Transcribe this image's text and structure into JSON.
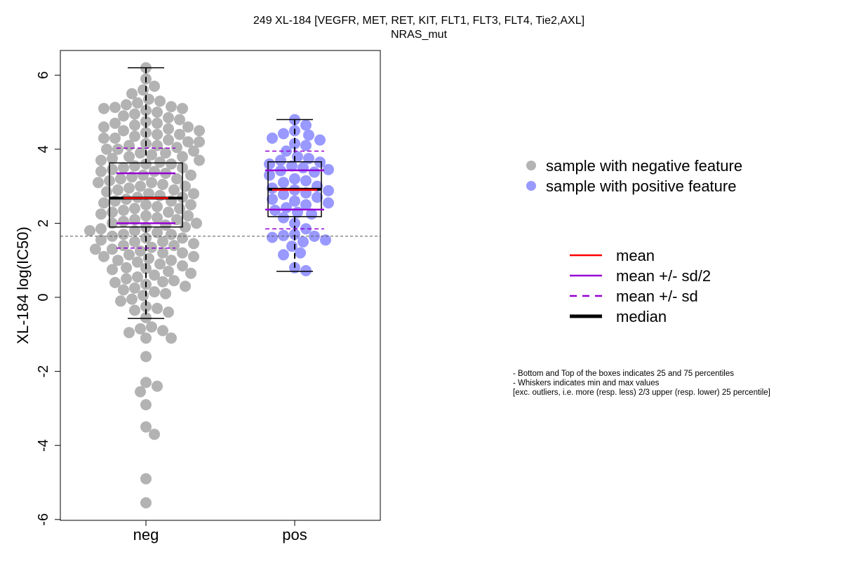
{
  "chart_data": {
    "type": "scatter",
    "title": "249 XL-184 [VEGFR, MET, RET, KIT, FLT1, FLT3, FLT4, Tie2,AXL]",
    "subtitle": "NRAS_mut",
    "ylabel": "XL-184 log(IC50)",
    "xlabel": "",
    "categories": [
      "neg",
      "pos"
    ],
    "yticks": [
      -6,
      -4,
      -2,
      0,
      2,
      4,
      6
    ],
    "ylim": [
      -6.2,
      6.6
    ],
    "reference_line": 1.65,
    "colors": {
      "neg": "#b3b3b3",
      "pos": "#9999ff",
      "mean": "#ff0000",
      "sd": "#9400d3",
      "median": "#000000"
    },
    "groups": [
      {
        "name": "neg",
        "box": {
          "q1": 1.9,
          "median": 2.68,
          "q3": 3.63,
          "whisker_low": -0.57,
          "whisker_high": 6.2
        },
        "mean": 2.68,
        "half_sd_low": 2.0,
        "half_sd_high": 3.35,
        "sd_low": 1.33,
        "sd_high": 4.03,
        "points": [
          6.2,
          5.9,
          5.7,
          5.6,
          5.5,
          5.35,
          5.3,
          5.25,
          5.2,
          5.15,
          5.13,
          5.1,
          5.1,
          5.05,
          5.0,
          4.95,
          4.9,
          4.85,
          4.8,
          4.75,
          4.7,
          4.7,
          4.65,
          4.6,
          4.6,
          4.55,
          4.5,
          4.5,
          4.45,
          4.4,
          4.4,
          4.35,
          4.3,
          4.3,
          4.25,
          4.2,
          4.2,
          4.15,
          4.1,
          4.1,
          4.05,
          4.0,
          4.0,
          3.95,
          3.9,
          3.9,
          3.85,
          3.8,
          3.8,
          3.75,
          3.7,
          3.7,
          3.65,
          3.6,
          3.6,
          3.55,
          3.5,
          3.5,
          3.45,
          3.4,
          3.4,
          3.35,
          3.3,
          3.3,
          3.25,
          3.2,
          3.2,
          3.15,
          3.1,
          3.1,
          3.05,
          3.0,
          3.0,
          2.95,
          2.9,
          2.9,
          2.85,
          2.8,
          2.8,
          2.75,
          2.7,
          2.7,
          2.65,
          2.6,
          2.6,
          2.55,
          2.5,
          2.5,
          2.45,
          2.4,
          2.4,
          2.35,
          2.3,
          2.3,
          2.25,
          2.2,
          2.2,
          2.15,
          2.1,
          2.1,
          2.05,
          2.0,
          2.0,
          1.95,
          1.9,
          1.9,
          1.85,
          1.8,
          1.8,
          1.75,
          1.7,
          1.7,
          1.65,
          1.6,
          1.6,
          1.55,
          1.5,
          1.5,
          1.45,
          1.4,
          1.4,
          1.35,
          1.3,
          1.3,
          1.25,
          1.2,
          1.2,
          1.15,
          1.1,
          1.1,
          1.05,
          1.0,
          1.0,
          0.95,
          0.9,
          0.85,
          0.8,
          0.78,
          0.75,
          0.7,
          0.65,
          0.6,
          0.55,
          0.5,
          0.45,
          0.42,
          0.4,
          0.35,
          0.3,
          0.25,
          0.2,
          0.15,
          0.1,
          0.05,
          -0.05,
          -0.1,
          -0.25,
          -0.3,
          -0.35,
          -0.4,
          -0.55,
          -0.8,
          -0.85,
          -0.9,
          -0.95,
          -1.1,
          -1.1,
          -1.6,
          -2.3,
          -2.4,
          -2.55,
          -2.9,
          -3.5,
          -3.7,
          -4.9,
          -5.55
        ]
      },
      {
        "name": "pos",
        "box": {
          "q1": 2.18,
          "median": 2.92,
          "q3": 3.66,
          "whisker_low": 0.7,
          "whisker_high": 4.8
        },
        "mean": 2.9,
        "half_sd_low": 2.37,
        "half_sd_high": 3.43,
        "sd_low": 1.85,
        "sd_high": 3.95,
        "points": [
          4.8,
          4.65,
          4.5,
          4.42,
          4.38,
          4.3,
          4.25,
          4.15,
          4.1,
          3.95,
          3.8,
          3.75,
          3.7,
          3.65,
          3.6,
          3.55,
          3.5,
          3.45,
          3.42,
          3.38,
          3.3,
          3.2,
          3.15,
          3.1,
          3.0,
          2.95,
          2.9,
          2.88,
          2.82,
          2.78,
          2.7,
          2.65,
          2.6,
          2.55,
          2.5,
          2.42,
          2.35,
          2.3,
          2.25,
          2.15,
          2.0,
          1.85,
          1.7,
          1.67,
          1.65,
          1.62,
          1.55,
          1.5,
          1.38,
          1.2,
          1.15,
          0.8,
          0.72
        ]
      }
    ],
    "legend_points": [
      {
        "label": "sample with negative feature",
        "color": "#b3b3b3"
      },
      {
        "label": "sample with positive feature",
        "color": "#9999ff"
      }
    ],
    "legend_lines": [
      {
        "label": "mean",
        "color": "#ff0000",
        "style": "solid"
      },
      {
        "label": "mean +/- sd/2",
        "color": "#9400d3",
        "style": "solid"
      },
      {
        "label": "mean +/- sd",
        "color": "#9400d3",
        "style": "dashed"
      },
      {
        "label": "median",
        "color": "#000000",
        "style": "thick"
      }
    ],
    "notes": [
      "- Bottom and Top of the boxes indicates 25 and 75 percentiles",
      "- Whiskers indicates min and max values",
      "[exc. outliers, i.e. more (resp. less) 2/3 upper (resp. lower) 25 percentile]"
    ]
  }
}
